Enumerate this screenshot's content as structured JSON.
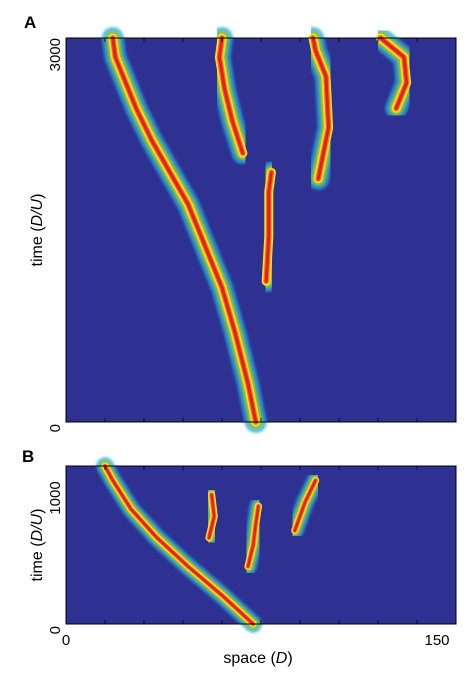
{
  "chart_data": [
    {
      "type": "heatmap",
      "panel_label": "A",
      "xlabel": "",
      "ylabel_prefix": "time (",
      "ylabel_italic": "D/U",
      "ylabel_suffix": ")",
      "xlim": [
        0,
        150
      ],
      "ylim": [
        0,
        3000
      ],
      "yticks": [
        0,
        3000
      ],
      "xticks": [],
      "colormap": [
        "#2e3192",
        "#27aae1",
        "#8dc63f",
        "#f7e017",
        "#f36b21",
        "#e31e24"
      ],
      "tracks": [
        [
          [
            73,
            0
          ],
          [
            70,
            300
          ],
          [
            65,
            700
          ],
          [
            60,
            1050
          ],
          [
            53,
            1400
          ],
          [
            47,
            1700
          ],
          [
            40,
            1950
          ],
          [
            33,
            2200
          ],
          [
            27,
            2450
          ],
          [
            22,
            2700
          ],
          [
            19,
            2850
          ],
          [
            18,
            3000
          ]
        ],
        [
          [
            77,
            1100
          ],
          [
            78,
            1450
          ],
          [
            78,
            1800
          ],
          [
            79,
            1950
          ]
        ],
        [
          [
            68,
            2100
          ],
          [
            64,
            2350
          ],
          [
            61,
            2600
          ],
          [
            59,
            2850
          ],
          [
            60,
            3000
          ]
        ],
        [
          [
            97,
            1900
          ],
          [
            101,
            2300
          ],
          [
            100,
            2700
          ],
          [
            96,
            2900
          ],
          [
            95,
            3000
          ]
        ],
        [
          [
            127,
            2450
          ],
          [
            131,
            2650
          ],
          [
            130,
            2850
          ],
          [
            121,
            3000
          ]
        ]
      ]
    },
    {
      "type": "heatmap",
      "panel_label": "B",
      "xlabel_prefix": "space (",
      "xlabel_italic": "D",
      "xlabel_suffix": ")",
      "ylabel_prefix": "time (",
      "ylabel_italic": "D/U",
      "ylabel_suffix": ")",
      "xlim": [
        0,
        150
      ],
      "ylim": [
        0,
        1100
      ],
      "yticks": [
        0,
        1000
      ],
      "xticks": [
        0,
        150
      ],
      "colormap": [
        "#2e3192",
        "#27aae1",
        "#8dc63f",
        "#f7e017",
        "#f36b21",
        "#e31e24"
      ],
      "tracks": [
        [
          [
            72,
            0
          ],
          [
            60,
            200
          ],
          [
            47,
            400
          ],
          [
            35,
            600
          ],
          [
            25,
            800
          ],
          [
            18,
            1000
          ],
          [
            15,
            1100
          ]
        ],
        [
          [
            70,
            400
          ],
          [
            72,
            550
          ],
          [
            73,
            700
          ],
          [
            74,
            820
          ]
        ],
        [
          [
            55,
            600
          ],
          [
            57,
            750
          ],
          [
            56,
            900
          ]
        ],
        [
          [
            88,
            650
          ],
          [
            92,
            850
          ],
          [
            96,
            1000
          ]
        ]
      ]
    }
  ]
}
